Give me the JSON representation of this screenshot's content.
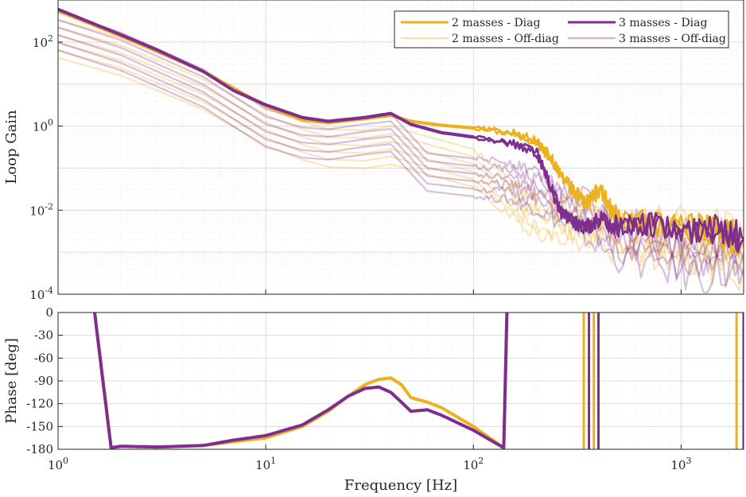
{
  "chart_data": [
    {
      "type": "line",
      "ylabel": "Loop Gain",
      "xscale": "log",
      "yscale": "log",
      "xlim": [
        1,
        2000
      ],
      "ylim": [
        0.0001,
        1000
      ],
      "yticks": [
        0.0001,
        0.01,
        1,
        100
      ],
      "ytick_labels": [
        {
          "base": "10",
          "exp": "-4"
        },
        {
          "base": "10",
          "exp": "-2"
        },
        {
          "base": "10",
          "exp": "0"
        },
        {
          "base": "10",
          "exp": "2"
        }
      ],
      "grid": true,
      "minor_grid": true,
      "legend_position": "top-right",
      "legend": [
        {
          "label": "2 masses - Diag",
          "color": "#EDB120",
          "style": "solid-thick"
        },
        {
          "label": "3 masses - Diag",
          "color": "#7E2F8E",
          "style": "solid-thick"
        },
        {
          "label": "2 masses - Off-diag",
          "color": "#EDB120",
          "style": "solid-faded"
        },
        {
          "label": "3 masses - Off-diag",
          "color": "#7E2F8E",
          "style": "solid-faded"
        }
      ],
      "series": [
        {
          "name": "2 masses - Diag",
          "color": "#EDB120",
          "x": [
            1,
            2,
            3,
            5,
            7,
            10,
            15,
            20,
            30,
            40,
            50,
            70,
            100,
            150,
            200,
            230,
            260,
            300,
            350,
            400,
            500,
            700,
            1000,
            1500,
            2000
          ],
          "y": [
            550,
            140,
            60,
            20,
            8,
            3.0,
            1.4,
            1.2,
            1.5,
            1.8,
            1.3,
            1.05,
            0.9,
            0.7,
            0.45,
            0.2,
            0.08,
            0.03,
            0.015,
            0.03,
            0.006,
            0.005,
            0.004,
            0.003,
            0.002
          ]
        },
        {
          "name": "3 masses - Diag",
          "color": "#7E2F8E",
          "x": [
            1,
            2,
            3,
            5,
            7,
            10,
            15,
            20,
            30,
            40,
            50,
            70,
            100,
            150,
            200,
            230,
            260,
            300,
            350,
            400,
            500,
            700,
            1000,
            1500,
            2000
          ],
          "y": [
            600,
            150,
            65,
            20,
            7,
            3.2,
            1.6,
            1.3,
            1.6,
            2.0,
            1.1,
            0.7,
            0.55,
            0.4,
            0.25,
            0.05,
            0.01,
            0.005,
            0.004,
            0.006,
            0.004,
            0.005,
            0.003,
            0.004,
            0.002
          ]
        },
        {
          "name": "2 masses - Off-diag",
          "color": "#EDB120",
          "x": [
            1,
            2,
            5,
            10,
            15,
            20,
            30,
            40,
            60,
            100,
            150,
            200,
            300,
            500,
            1000,
            2000
          ],
          "y": [
            120,
            45,
            7,
            1.0,
            0.45,
            0.3,
            0.28,
            0.35,
            0.2,
            0.1,
            0.02,
            0.008,
            0.005,
            0.003,
            0.002,
            0.001
          ]
        },
        {
          "name": "3 masses - Off-diag",
          "color": "#7E2F8E",
          "x": [
            1,
            2,
            5,
            10,
            15,
            20,
            30,
            40,
            60,
            100,
            150,
            200,
            300,
            500,
            1000,
            2000
          ],
          "y": [
            180,
            60,
            8,
            0.9,
            0.5,
            0.45,
            0.6,
            0.7,
            0.08,
            0.06,
            0.05,
            0.03,
            0.01,
            0.002,
            0.001,
            0.0008
          ]
        }
      ]
    },
    {
      "type": "line",
      "xlabel": "Frequency [Hz]",
      "ylabel": "Phase [deg]",
      "xscale": "log",
      "xlim": [
        1,
        2000
      ],
      "ylim": [
        -180,
        0
      ],
      "yticks": [
        -180,
        -150,
        -120,
        -90,
        -60,
        -30,
        0
      ],
      "xticks": [
        1,
        10,
        100,
        1000
      ],
      "xtick_labels": [
        {
          "base": "10",
          "exp": "0"
        },
        {
          "base": "10",
          "exp": "1"
        },
        {
          "base": "10",
          "exp": "2"
        },
        {
          "base": "10",
          "exp": "3"
        }
      ],
      "grid": true,
      "series": [
        {
          "name": "2 masses - Diag",
          "color": "#EDB120",
          "x": [
            1.5,
            1.8,
            2,
            3,
            5,
            7,
            10,
            15,
            20,
            25,
            30,
            35,
            40,
            45,
            50,
            60,
            70,
            100,
            140,
            145
          ],
          "y": [
            0,
            -178,
            -176,
            -177,
            -175,
            -170,
            -165,
            -150,
            -130,
            -110,
            -95,
            -88,
            -86,
            -95,
            -112,
            -118,
            -125,
            -150,
            -178,
            0
          ]
        },
        {
          "name": "3 masses - Diag",
          "color": "#7E2F8E",
          "x": [
            1.5,
            1.8,
            2,
            3,
            5,
            7,
            10,
            15,
            20,
            25,
            30,
            35,
            40,
            45,
            50,
            60,
            70,
            100,
            140,
            145
          ],
          "y": [
            0,
            -178,
            -176,
            -177,
            -175,
            -168,
            -162,
            -148,
            -128,
            -110,
            -100,
            -98,
            -105,
            -118,
            -130,
            -128,
            -135,
            -155,
            -178,
            0
          ]
        }
      ]
    }
  ]
}
